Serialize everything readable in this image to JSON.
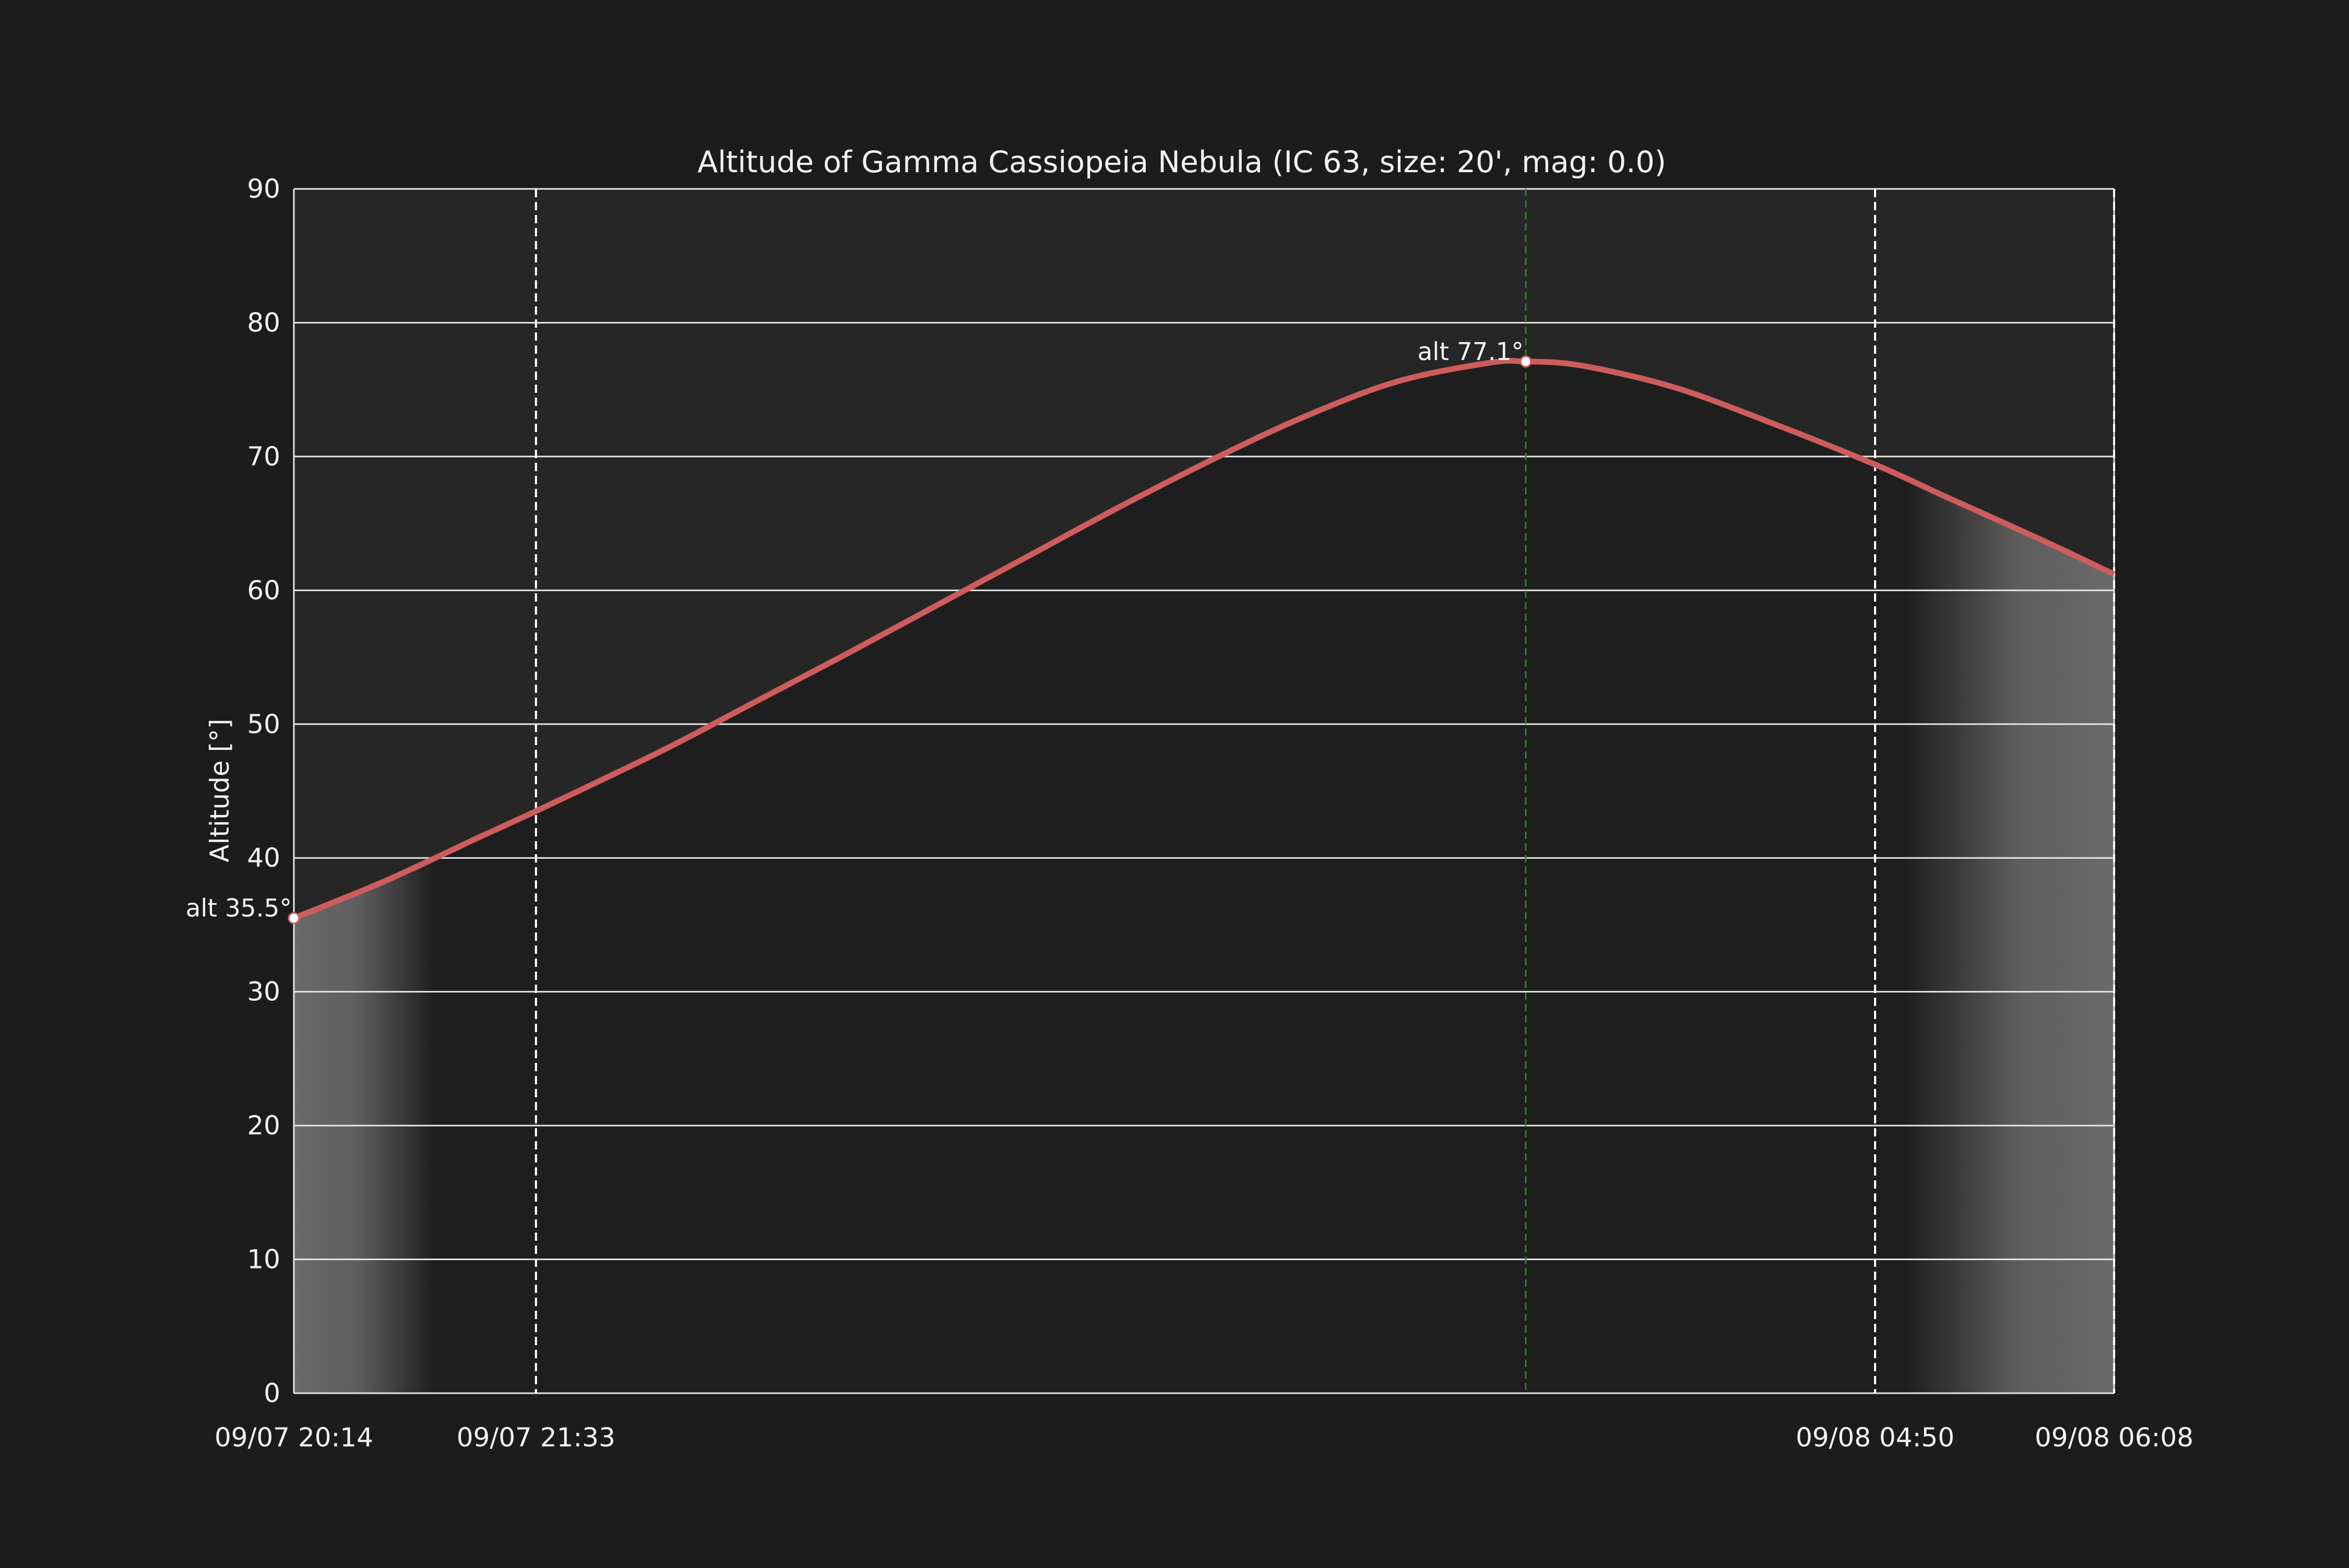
{
  "chart_data": {
    "type": "line",
    "title": "Altitude of Gamma Cassiopeia Nebula (IC 63, size: 20', mag: 0.0)",
    "ylabel": "Altitude [°]",
    "xlabel": "",
    "ylim": [
      0,
      90
    ],
    "yticks": [
      "0",
      "10",
      "20",
      "30",
      "40",
      "50",
      "60",
      "70",
      "80",
      "90"
    ],
    "xlim": [
      "2024-09-07 20:14",
      "2024-09-08 06:08"
    ],
    "xtick_labels": [
      "09/07 20:14",
      "09/07 21:33",
      "09/08 04:50",
      "09/08 06:08"
    ],
    "grid": "horizontal",
    "series": [
      {
        "color": "#cd5c5c",
        "points": [
          [
            "20:14",
            35.5
          ],
          [
            "20:44",
            38.3
          ],
          [
            "21:14",
            41.5
          ],
          [
            "21:33",
            43.5
          ],
          [
            "22:14",
            48.0
          ],
          [
            "22:44",
            51.6
          ],
          [
            "23:14",
            55.2
          ],
          [
            "23:44",
            58.9
          ],
          [
            "00:14",
            62.6
          ],
          [
            "00:44",
            66.3
          ],
          [
            "01:14",
            69.8
          ],
          [
            "01:44",
            73.0
          ],
          [
            "02:14",
            75.6
          ],
          [
            "02:44",
            77.0
          ],
          [
            "02:56",
            77.1
          ],
          [
            "03:14",
            76.8
          ],
          [
            "03:44",
            75.2
          ],
          [
            "04:14",
            72.7
          ],
          [
            "04:50",
            69.4
          ],
          [
            "05:14",
            66.9
          ],
          [
            "05:44",
            63.8
          ],
          [
            "06:08",
            61.2
          ]
        ]
      }
    ],
    "vertical_lines": [
      {
        "time": "09/07 21:33",
        "color": "#ffffff",
        "style": "dashed"
      },
      {
        "time": "09/08 04:50",
        "color": "#ffffff",
        "style": "dashed"
      },
      {
        "time": "09/08 06:08",
        "color": "#ffffff",
        "style": "dashed"
      },
      {
        "time": "09/08 02:56",
        "color": "#228b22",
        "style": "dashed"
      }
    ],
    "annotations": [
      {
        "text": "alt 35.5°",
        "time": "20:14",
        "alt": 35.5
      },
      {
        "text": "alt 77.1°",
        "time": "02:56",
        "alt": 77.1
      }
    ],
    "twilight_shading": [
      {
        "from": "20:14",
        "to": "21:00",
        "side": "evening"
      },
      {
        "from": "05:00",
        "to": "06:08",
        "side": "morning"
      }
    ],
    "colors": {
      "background": "#1c1c1c",
      "axes_background": "#262626",
      "night_fill": "#1e1e1e",
      "twilight_fill": "#666666",
      "line": "#cd5c5c",
      "grid": "#e6e6e6",
      "meridian": "#228b22"
    }
  }
}
